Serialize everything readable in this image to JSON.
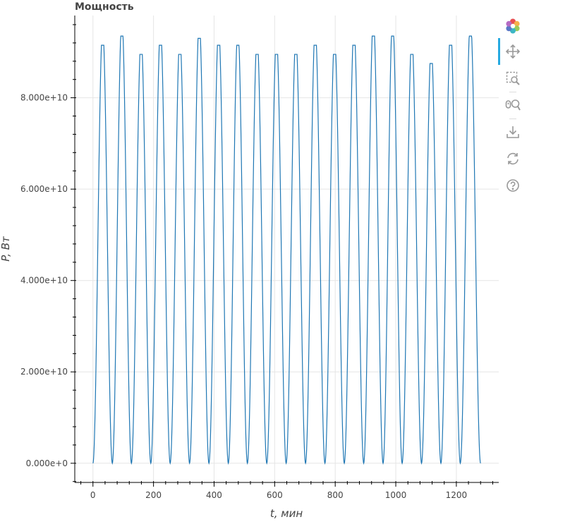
{
  "chart_data": {
    "type": "line",
    "title": "Мощность",
    "xlabel": "t, мин",
    "ylabel": "P, Вт",
    "xlim": [
      -60,
      1340
    ],
    "ylim": [
      -4200000000.0,
      98000000000.0
    ],
    "x_ticks": [
      0,
      200,
      400,
      600,
      800,
      1000,
      1200
    ],
    "x_tick_labels": [
      "0",
      "200",
      "400",
      "600",
      "800",
      "1000",
      "1200"
    ],
    "y_ticks": [
      0,
      20000000000.0,
      40000000000.0,
      60000000000.0,
      80000000000.0
    ],
    "y_tick_labels": [
      "0.000e+0",
      "2.000e+10",
      "4.000e+10",
      "6.000e+10",
      "8.000e+10"
    ],
    "grid": true,
    "series": [
      {
        "color": "#1f77b4",
        "x_start": 0,
        "x_end": 1280,
        "x_step": 1,
        "cycle_minima_x": [
          0,
          64,
          127,
          191,
          255,
          319,
          383,
          447,
          510,
          574,
          638,
          702,
          766,
          830,
          894,
          958,
          1021,
          1085,
          1149,
          1213,
          1280
        ],
        "cycle_peaks_y": [
          91500000000.0,
          93500000000.0,
          89500000000.0,
          91500000000.0,
          89500000000.0,
          93000000000.0,
          91500000000.0,
          91500000000.0,
          89500000000.0,
          89500000000.0,
          89500000000.0,
          91500000000.0,
          89500000000.0,
          91500000000.0,
          93500000000.0,
          93500000000.0,
          89500000000.0,
          87500000000.0,
          91500000000.0,
          93500000000.0
        ],
        "minimum_y": 0
      }
    ]
  },
  "toolbar": {
    "tools": [
      "bokeh-logo",
      "pan-tool",
      "box-zoom-tool",
      "wheel-zoom-tool",
      "save-tool",
      "reset-tool",
      "help-tool"
    ]
  }
}
